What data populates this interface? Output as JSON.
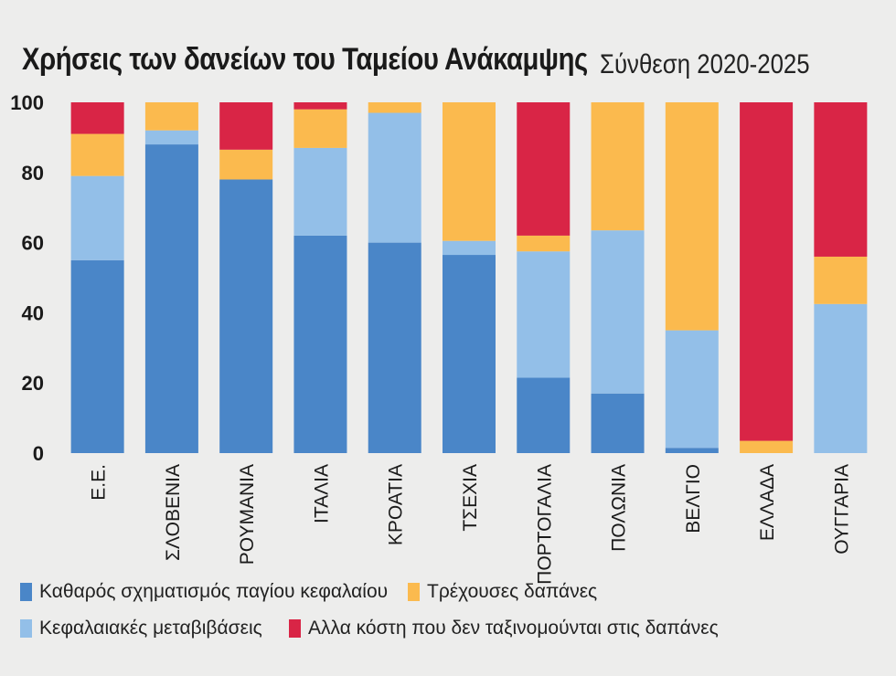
{
  "title": "Χρήσεις των δανείων του Ταμείου Ανάκαμψης",
  "subtitle": "Σύνθεση 2020-2025",
  "colors": {
    "capital": "#4a86c8",
    "transfers": "#93bfe8",
    "current": "#fbba4e",
    "other": "#d92546"
  },
  "chart_data": {
    "type": "bar",
    "stacked": true,
    "ylim": [
      0,
      100
    ],
    "yticks": [
      "0",
      "20",
      "40",
      "60",
      "80",
      "100"
    ],
    "legend_position": "bottom",
    "categories": [
      "Ε.Ε.",
      "ΣΛΟΒΕΝΙΑ",
      "ΡΟΥΜΑΝΙΑ",
      "ΙΤΑΛΙΑ",
      "ΚΡΟΑΤΙΑ",
      "ΤΣΕΧΙΑ",
      "ΠΟΡΤΟΓΑΛΙΑ",
      "ΠΟΛΩΝΙΑ",
      "ΒΕΛΓΙΟ",
      "ΕΛΛΑΔΑ",
      "ΟΥΓΓΑΡΙΑ"
    ],
    "series": [
      {
        "name": "Καθαρός σχηματισμός παγίου κεφαλαίου",
        "color_key": "capital",
        "values": [
          55,
          88,
          78,
          62,
          60,
          56.5,
          21.5,
          17,
          1.5,
          0,
          0
        ]
      },
      {
        "name": "Κεφαλαιακές μεταβιβάσεις",
        "color_key": "transfers",
        "values": [
          24,
          4,
          0,
          25,
          37,
          4,
          36,
          46.5,
          33.5,
          0,
          42.5
        ]
      },
      {
        "name": "Τρέχουσες δαπάνες",
        "color_key": "current",
        "values": [
          12,
          8,
          8.5,
          11,
          3,
          39.5,
          4.5,
          36.5,
          65,
          3.5,
          13.5
        ]
      },
      {
        "name": "Αλλα κόστη που δεν ταξινομούνται στις δαπάνες",
        "color_key": "other",
        "values": [
          9,
          0,
          13.5,
          2,
          0,
          0,
          38,
          0,
          0,
          96.5,
          44
        ]
      }
    ]
  }
}
